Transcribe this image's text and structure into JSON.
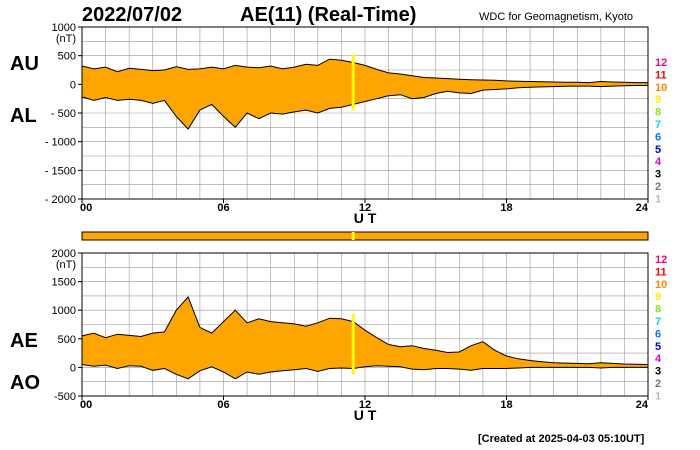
{
  "header": {
    "date": "2022/07/02",
    "title": "AE(11) (Real-Time)",
    "source": "WDC for Geomagnetism, Kyoto",
    "created": "[Created at 2025-04-03 05:10UT]"
  },
  "station_legend": [
    {
      "label": "12",
      "color": "#ff0080"
    },
    {
      "label": "11",
      "color": "#ff0000"
    },
    {
      "label": "10",
      "color": "#ff8800"
    },
    {
      "label": "9",
      "color": "#ffee00"
    },
    {
      "label": "8",
      "color": "#88ee00"
    },
    {
      "label": "7",
      "color": "#00dddd"
    },
    {
      "label": "6",
      "color": "#0077ff"
    },
    {
      "label": "5",
      "color": "#0000dd"
    },
    {
      "label": "4",
      "color": "#dd00dd"
    },
    {
      "label": "3",
      "color": "#000000"
    },
    {
      "label": "2",
      "color": "#777777"
    },
    {
      "label": "1",
      "color": "#bbbbbb"
    }
  ],
  "colors": {
    "fill": "#ffa500",
    "line": "#000000",
    "grid": "#999999",
    "marker": "#ffff00"
  },
  "chart_data": [
    {
      "type": "area",
      "name": "AU/AL",
      "series_labels": [
        "AU",
        "AL"
      ],
      "yunit": "(nT)",
      "xlabel": "U T",
      "xlim": [
        0,
        24
      ],
      "xticks": [
        0,
        6,
        12,
        18,
        24
      ],
      "xtick_labels": [
        "00",
        "06",
        "12",
        "18",
        "24"
      ],
      "ylim": [
        -2000,
        1000
      ],
      "yticks": [
        1000,
        500,
        0,
        -500,
        -1000,
        -1500,
        -2000
      ],
      "ytick_labels": [
        "1000",
        "500",
        "0",
        "- 500",
        "- 1000",
        "- 1500",
        "- 2000"
      ],
      "grid": true,
      "realtime_marker_ut": 11.5,
      "x": [
        0,
        0.5,
        1,
        1.5,
        2,
        2.5,
        3,
        3.5,
        4,
        4.5,
        5,
        5.5,
        6,
        6.5,
        7,
        7.5,
        8,
        8.5,
        9,
        9.5,
        10,
        10.5,
        11,
        11.5,
        12,
        12.5,
        13,
        13.5,
        14,
        14.5,
        15,
        15.5,
        16,
        16.5,
        17,
        17.5,
        18,
        18.5,
        19,
        19.5,
        20,
        20.5,
        21,
        21.5,
        22,
        22.5,
        23,
        23.5,
        24
      ],
      "upper": [
        320,
        270,
        300,
        220,
        280,
        260,
        240,
        250,
        310,
        260,
        270,
        300,
        270,
        330,
        300,
        290,
        320,
        270,
        300,
        350,
        330,
        440,
        420,
        380,
        330,
        260,
        200,
        180,
        150,
        120,
        110,
        100,
        90,
        80,
        75,
        70,
        60,
        55,
        50,
        45,
        40,
        35,
        35,
        30,
        50,
        40,
        35,
        30,
        30
      ],
      "lower": [
        -220,
        -280,
        -230,
        -280,
        -260,
        -280,
        -330,
        -280,
        -560,
        -780,
        -450,
        -350,
        -560,
        -750,
        -500,
        -600,
        -500,
        -520,
        -480,
        -450,
        -500,
        -420,
        -400,
        -350,
        -300,
        -250,
        -200,
        -180,
        -250,
        -230,
        -160,
        -120,
        -150,
        -160,
        -100,
        -90,
        -80,
        -60,
        -50,
        -45,
        -40,
        -35,
        -30,
        -30,
        -40,
        -30,
        -25,
        -20,
        -20
      ]
    },
    {
      "type": "area",
      "name": "AE/AO",
      "series_labels": [
        "AE",
        "AO"
      ],
      "yunit": "(nT)",
      "xlabel": "U T",
      "xlim": [
        0,
        24
      ],
      "xticks": [
        0,
        6,
        12,
        18,
        24
      ],
      "xtick_labels": [
        "00",
        "06",
        "12",
        "18",
        "24"
      ],
      "ylim": [
        -500,
        2000
      ],
      "yticks": [
        2000,
        1500,
        1000,
        500,
        0,
        -500
      ],
      "ytick_labels": [
        "2000",
        "1500",
        "1000",
        "500",
        "0",
        "-500"
      ],
      "grid": true,
      "realtime_marker_ut": 11.5,
      "x": [
        0,
        0.5,
        1,
        1.5,
        2,
        2.5,
        3,
        3.5,
        4,
        4.5,
        5,
        5.5,
        6,
        6.5,
        7,
        7.5,
        8,
        8.5,
        9,
        9.5,
        10,
        10.5,
        11,
        11.5,
        12,
        12.5,
        13,
        13.5,
        14,
        14.5,
        15,
        15.5,
        16,
        16.5,
        17,
        17.5,
        18,
        18.5,
        19,
        19.5,
        20,
        20.5,
        21,
        21.5,
        22,
        22.5,
        23,
        23.5,
        24
      ],
      "upper": [
        550,
        600,
        520,
        580,
        560,
        540,
        600,
        620,
        1000,
        1230,
        700,
        600,
        800,
        1000,
        780,
        850,
        800,
        780,
        760,
        720,
        780,
        860,
        850,
        800,
        650,
        520,
        400,
        360,
        380,
        330,
        300,
        260,
        270,
        380,
        450,
        300,
        200,
        150,
        120,
        100,
        80,
        75,
        70,
        65,
        80,
        70,
        60,
        55,
        50
      ],
      "lower": [
        50,
        20,
        40,
        -20,
        30,
        20,
        -50,
        -20,
        -120,
        -200,
        -60,
        10,
        -80,
        -200,
        -80,
        -120,
        -80,
        -60,
        -40,
        -20,
        -70,
        -20,
        -10,
        -20,
        10,
        30,
        20,
        10,
        -30,
        -40,
        -20,
        -20,
        -30,
        -50,
        -20,
        -20,
        -20,
        -10,
        0,
        0,
        0,
        0,
        0,
        0,
        -10,
        0,
        0,
        0,
        0
      ]
    }
  ]
}
